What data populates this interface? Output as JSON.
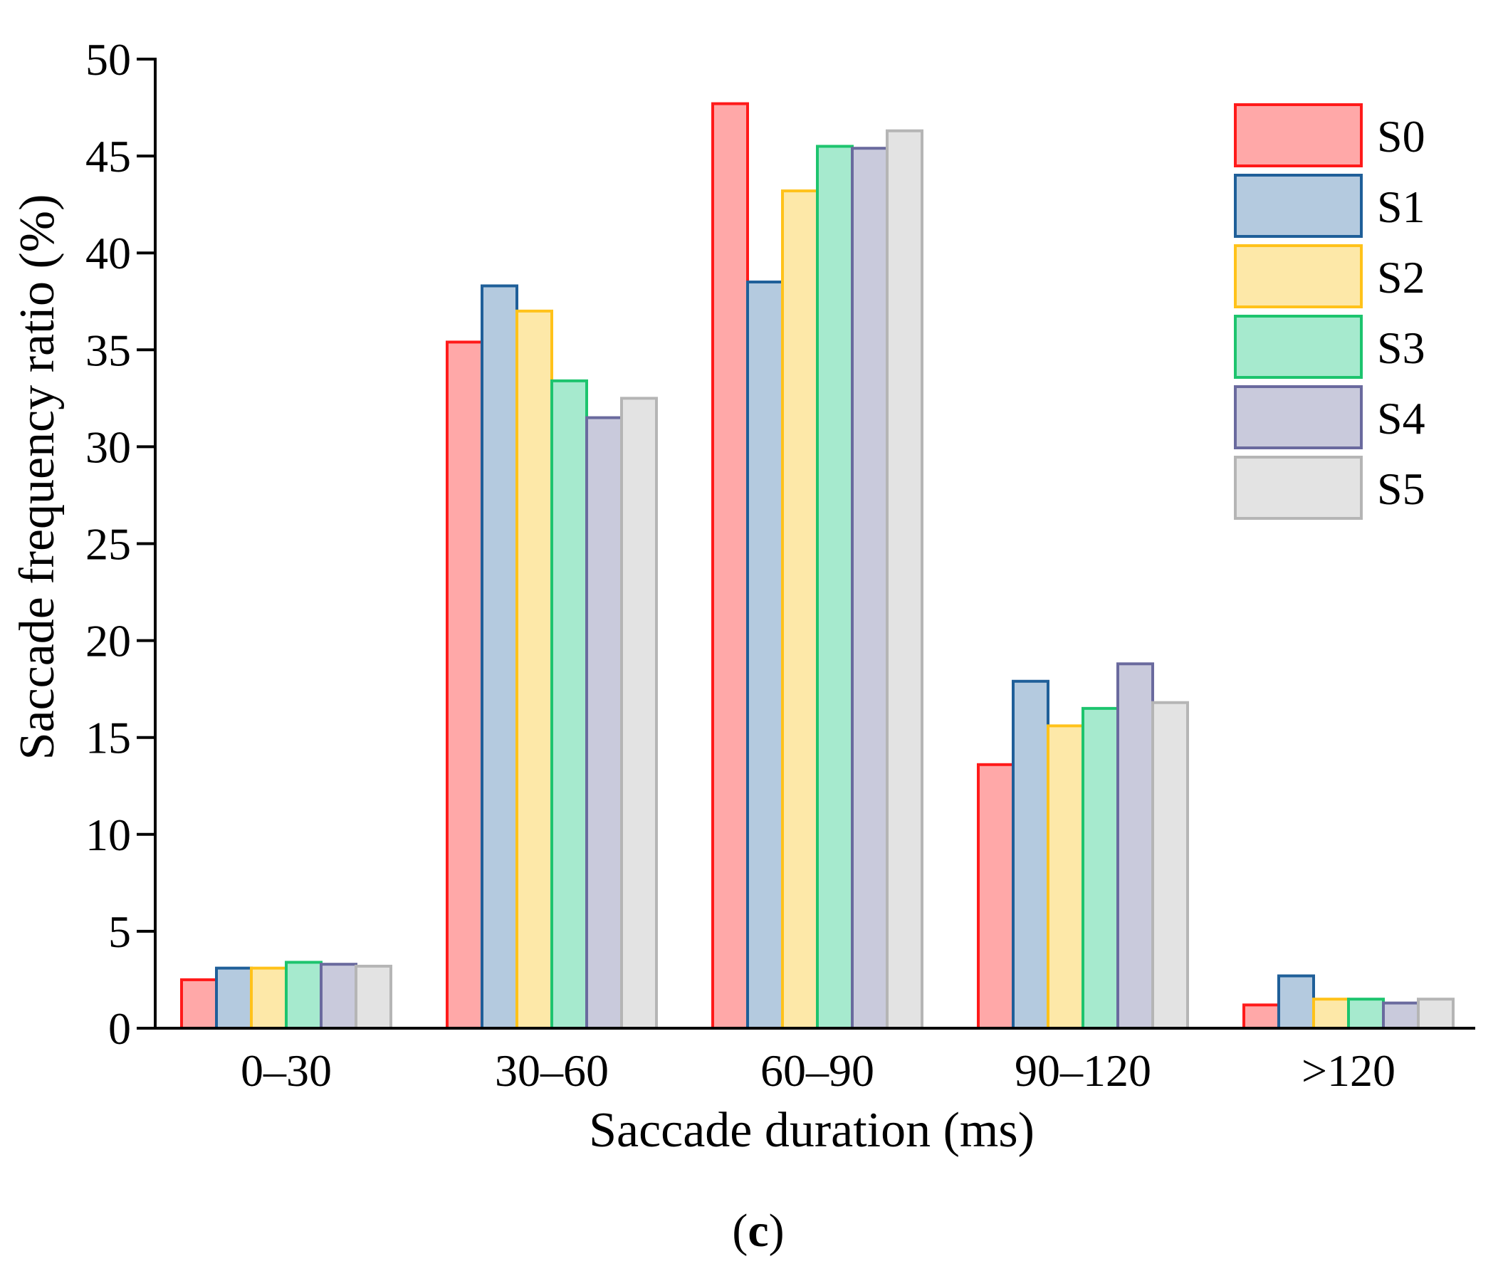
{
  "chart_data": {
    "type": "bar",
    "title": "",
    "xlabel": "Saccade duration (ms)",
    "ylabel": "Saccade frequency ratio (%)",
    "ylim": [
      0,
      50
    ],
    "yticks": [
      0,
      5,
      10,
      15,
      20,
      25,
      30,
      35,
      40,
      45,
      50
    ],
    "grid": false,
    "legend_position": "top-right",
    "categories": [
      "0–30",
      "30–60",
      "60–90",
      "90–120",
      ">120"
    ],
    "series": [
      {
        "name": "S0",
        "fill": "#FFA8A8",
        "stroke": "#FF1A1A",
        "values": [
          2.5,
          35.4,
          47.7,
          13.6,
          1.2
        ]
      },
      {
        "name": "S1",
        "fill": "#B4CADF",
        "stroke": "#1F5F99",
        "values": [
          3.1,
          38.3,
          38.5,
          17.9,
          2.7
        ]
      },
      {
        "name": "S2",
        "fill": "#FDE8A8",
        "stroke": "#FFC21A",
        "values": [
          3.1,
          37.0,
          43.2,
          15.6,
          1.5
        ]
      },
      {
        "name": "S3",
        "fill": "#A6EACE",
        "stroke": "#1DC46E",
        "values": [
          3.4,
          33.4,
          45.5,
          16.5,
          1.5
        ]
      },
      {
        "name": "S4",
        "fill": "#C9CADC",
        "stroke": "#6A6A9E",
        "values": [
          3.3,
          31.5,
          45.4,
          18.8,
          1.3
        ]
      },
      {
        "name": "S5",
        "fill": "#E3E3E3",
        "stroke": "#B5B5B5",
        "values": [
          3.2,
          32.5,
          46.3,
          16.8,
          1.5
        ]
      }
    ]
  },
  "caption": {
    "open": "(",
    "letter": "c",
    "close": ")"
  }
}
